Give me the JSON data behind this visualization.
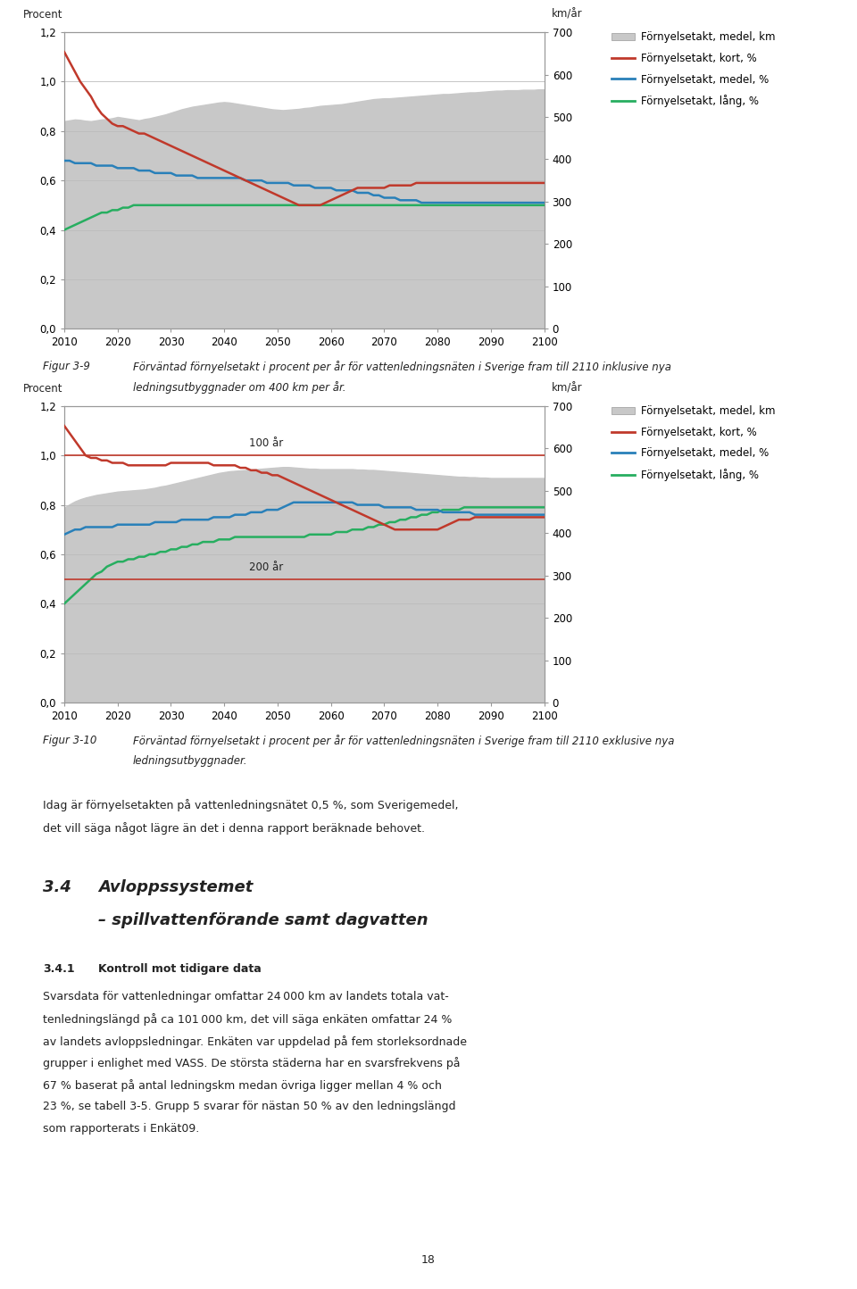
{
  "years": [
    2010,
    2011,
    2012,
    2013,
    2014,
    2015,
    2016,
    2017,
    2018,
    2019,
    2020,
    2021,
    2022,
    2023,
    2024,
    2025,
    2026,
    2027,
    2028,
    2029,
    2030,
    2031,
    2032,
    2033,
    2034,
    2035,
    2036,
    2037,
    2038,
    2039,
    2040,
    2041,
    2042,
    2043,
    2044,
    2045,
    2046,
    2047,
    2048,
    2049,
    2050,
    2051,
    2052,
    2053,
    2054,
    2055,
    2056,
    2057,
    2058,
    2059,
    2060,
    2061,
    2062,
    2063,
    2064,
    2065,
    2066,
    2067,
    2068,
    2069,
    2070,
    2071,
    2072,
    2073,
    2074,
    2075,
    2076,
    2077,
    2078,
    2079,
    2080,
    2081,
    2082,
    2083,
    2084,
    2085,
    2086,
    2087,
    2088,
    2089,
    2090,
    2091,
    2092,
    2093,
    2094,
    2095,
    2096,
    2097,
    2098,
    2099,
    2100
  ],
  "chart1": {
    "gray_fill": [
      490,
      492,
      494,
      493,
      491,
      490,
      492,
      494,
      495,
      497,
      500,
      498,
      496,
      494,
      492,
      495,
      497,
      500,
      503,
      506,
      510,
      514,
      518,
      521,
      524,
      526,
      528,
      530,
      532,
      534,
      535,
      534,
      532,
      530,
      528,
      526,
      524,
      522,
      520,
      518,
      517,
      516,
      517,
      518,
      519,
      521,
      522,
      524,
      526,
      527,
      528,
      529,
      530,
      532,
      534,
      536,
      538,
      540,
      542,
      543,
      544,
      544,
      545,
      546,
      547,
      548,
      549,
      550,
      551,
      552,
      553,
      554,
      554,
      555,
      556,
      557,
      558,
      558,
      559,
      560,
      561,
      562,
      562,
      563,
      563,
      563,
      564,
      564,
      564,
      565,
      565
    ],
    "red_short": [
      1.12,
      1.08,
      1.04,
      1.0,
      0.97,
      0.94,
      0.9,
      0.87,
      0.85,
      0.83,
      0.82,
      0.82,
      0.81,
      0.8,
      0.79,
      0.79,
      0.78,
      0.77,
      0.76,
      0.75,
      0.74,
      0.73,
      0.72,
      0.71,
      0.7,
      0.69,
      0.68,
      0.67,
      0.66,
      0.65,
      0.64,
      0.63,
      0.62,
      0.61,
      0.6,
      0.59,
      0.58,
      0.57,
      0.56,
      0.55,
      0.54,
      0.53,
      0.52,
      0.51,
      0.5,
      0.5,
      0.5,
      0.5,
      0.5,
      0.51,
      0.52,
      0.53,
      0.54,
      0.55,
      0.56,
      0.57,
      0.57,
      0.57,
      0.57,
      0.57,
      0.57,
      0.58,
      0.58,
      0.58,
      0.58,
      0.58,
      0.59,
      0.59,
      0.59,
      0.59,
      0.59,
      0.59,
      0.59,
      0.59,
      0.59,
      0.59,
      0.59,
      0.59,
      0.59,
      0.59,
      0.59,
      0.59,
      0.59,
      0.59,
      0.59,
      0.59,
      0.59,
      0.59,
      0.59,
      0.59,
      0.59
    ],
    "blue_med": [
      0.68,
      0.68,
      0.67,
      0.67,
      0.67,
      0.67,
      0.66,
      0.66,
      0.66,
      0.66,
      0.65,
      0.65,
      0.65,
      0.65,
      0.64,
      0.64,
      0.64,
      0.63,
      0.63,
      0.63,
      0.63,
      0.62,
      0.62,
      0.62,
      0.62,
      0.61,
      0.61,
      0.61,
      0.61,
      0.61,
      0.61,
      0.61,
      0.61,
      0.61,
      0.6,
      0.6,
      0.6,
      0.6,
      0.59,
      0.59,
      0.59,
      0.59,
      0.59,
      0.58,
      0.58,
      0.58,
      0.58,
      0.57,
      0.57,
      0.57,
      0.57,
      0.56,
      0.56,
      0.56,
      0.56,
      0.55,
      0.55,
      0.55,
      0.54,
      0.54,
      0.53,
      0.53,
      0.53,
      0.52,
      0.52,
      0.52,
      0.52,
      0.51,
      0.51,
      0.51,
      0.51,
      0.51,
      0.51,
      0.51,
      0.51,
      0.51,
      0.51,
      0.51,
      0.51,
      0.51,
      0.51,
      0.51,
      0.51,
      0.51,
      0.51,
      0.51,
      0.51,
      0.51,
      0.51,
      0.51,
      0.51
    ],
    "green_long": [
      0.4,
      0.41,
      0.42,
      0.43,
      0.44,
      0.45,
      0.46,
      0.47,
      0.47,
      0.48,
      0.48,
      0.49,
      0.49,
      0.5,
      0.5,
      0.5,
      0.5,
      0.5,
      0.5,
      0.5,
      0.5,
      0.5,
      0.5,
      0.5,
      0.5,
      0.5,
      0.5,
      0.5,
      0.5,
      0.5,
      0.5,
      0.5,
      0.5,
      0.5,
      0.5,
      0.5,
      0.5,
      0.5,
      0.5,
      0.5,
      0.5,
      0.5,
      0.5,
      0.5,
      0.5,
      0.5,
      0.5,
      0.5,
      0.5,
      0.5,
      0.5,
      0.5,
      0.5,
      0.5,
      0.5,
      0.5,
      0.5,
      0.5,
      0.5,
      0.5,
      0.5,
      0.5,
      0.5,
      0.5,
      0.5,
      0.5,
      0.5,
      0.5,
      0.5,
      0.5,
      0.5,
      0.5,
      0.5,
      0.5,
      0.5,
      0.5,
      0.5,
      0.5,
      0.5,
      0.5,
      0.5,
      0.5,
      0.5,
      0.5,
      0.5,
      0.5,
      0.5,
      0.5,
      0.5,
      0.5,
      0.5
    ]
  },
  "chart2": {
    "gray_fill": [
      460,
      468,
      475,
      480,
      484,
      487,
      490,
      492,
      494,
      496,
      498,
      499,
      500,
      501,
      502,
      503,
      505,
      507,
      510,
      512,
      515,
      518,
      521,
      524,
      527,
      530,
      533,
      536,
      539,
      542,
      544,
      546,
      547,
      548,
      549,
      550,
      551,
      552,
      553,
      554,
      555,
      556,
      556,
      555,
      554,
      553,
      552,
      552,
      551,
      551,
      551,
      551,
      551,
      551,
      551,
      550,
      550,
      549,
      549,
      548,
      547,
      546,
      545,
      544,
      543,
      542,
      541,
      540,
      539,
      538,
      537,
      536,
      535,
      534,
      533,
      533,
      532,
      532,
      531,
      531,
      530,
      530,
      530,
      530,
      530,
      530,
      530,
      530,
      530,
      530,
      530
    ],
    "red_short": [
      1.12,
      1.09,
      1.06,
      1.03,
      1.0,
      0.99,
      0.99,
      0.98,
      0.98,
      0.97,
      0.97,
      0.97,
      0.96,
      0.96,
      0.96,
      0.96,
      0.96,
      0.96,
      0.96,
      0.96,
      0.97,
      0.97,
      0.97,
      0.97,
      0.97,
      0.97,
      0.97,
      0.97,
      0.96,
      0.96,
      0.96,
      0.96,
      0.96,
      0.95,
      0.95,
      0.94,
      0.94,
      0.93,
      0.93,
      0.92,
      0.92,
      0.91,
      0.9,
      0.89,
      0.88,
      0.87,
      0.86,
      0.85,
      0.84,
      0.83,
      0.82,
      0.81,
      0.8,
      0.79,
      0.78,
      0.77,
      0.76,
      0.75,
      0.74,
      0.73,
      0.72,
      0.71,
      0.7,
      0.7,
      0.7,
      0.7,
      0.7,
      0.7,
      0.7,
      0.7,
      0.7,
      0.71,
      0.72,
      0.73,
      0.74,
      0.74,
      0.74,
      0.75,
      0.75,
      0.75,
      0.75,
      0.75,
      0.75,
      0.75,
      0.75,
      0.75,
      0.75,
      0.75,
      0.75,
      0.75,
      0.75
    ],
    "blue_med": [
      0.68,
      0.69,
      0.7,
      0.7,
      0.71,
      0.71,
      0.71,
      0.71,
      0.71,
      0.71,
      0.72,
      0.72,
      0.72,
      0.72,
      0.72,
      0.72,
      0.72,
      0.73,
      0.73,
      0.73,
      0.73,
      0.73,
      0.74,
      0.74,
      0.74,
      0.74,
      0.74,
      0.74,
      0.75,
      0.75,
      0.75,
      0.75,
      0.76,
      0.76,
      0.76,
      0.77,
      0.77,
      0.77,
      0.78,
      0.78,
      0.78,
      0.79,
      0.8,
      0.81,
      0.81,
      0.81,
      0.81,
      0.81,
      0.81,
      0.81,
      0.81,
      0.81,
      0.81,
      0.81,
      0.81,
      0.8,
      0.8,
      0.8,
      0.8,
      0.8,
      0.79,
      0.79,
      0.79,
      0.79,
      0.79,
      0.79,
      0.78,
      0.78,
      0.78,
      0.78,
      0.78,
      0.77,
      0.77,
      0.77,
      0.77,
      0.77,
      0.77,
      0.76,
      0.76,
      0.76,
      0.76,
      0.76,
      0.76,
      0.76,
      0.76,
      0.76,
      0.76,
      0.76,
      0.76,
      0.76,
      0.76
    ],
    "green_long": [
      0.4,
      0.42,
      0.44,
      0.46,
      0.48,
      0.5,
      0.52,
      0.53,
      0.55,
      0.56,
      0.57,
      0.57,
      0.58,
      0.58,
      0.59,
      0.59,
      0.6,
      0.6,
      0.61,
      0.61,
      0.62,
      0.62,
      0.63,
      0.63,
      0.64,
      0.64,
      0.65,
      0.65,
      0.65,
      0.66,
      0.66,
      0.66,
      0.67,
      0.67,
      0.67,
      0.67,
      0.67,
      0.67,
      0.67,
      0.67,
      0.67,
      0.67,
      0.67,
      0.67,
      0.67,
      0.67,
      0.68,
      0.68,
      0.68,
      0.68,
      0.68,
      0.69,
      0.69,
      0.69,
      0.7,
      0.7,
      0.7,
      0.71,
      0.71,
      0.72,
      0.72,
      0.73,
      0.73,
      0.74,
      0.74,
      0.75,
      0.75,
      0.76,
      0.76,
      0.77,
      0.77,
      0.78,
      0.78,
      0.78,
      0.78,
      0.79,
      0.79,
      0.79,
      0.79,
      0.79,
      0.79,
      0.79,
      0.79,
      0.79,
      0.79,
      0.79,
      0.79,
      0.79,
      0.79,
      0.79,
      0.79
    ],
    "line_100yr": 1.0,
    "line_200yr": 0.5,
    "label_100yr": "100 år",
    "label_200yr": "200 år"
  },
  "ylim_left": [
    0.0,
    1.2
  ],
  "ylim_right": [
    0,
    700
  ],
  "yticks_left": [
    0.0,
    0.2,
    0.4,
    0.6,
    0.8,
    1.0,
    1.2
  ],
  "ytick_labels_left": [
    "0,0",
    "0,2",
    "0,4",
    "0,6",
    "0,8",
    "1,0",
    "1,2"
  ],
  "yticks_right": [
    0,
    100,
    200,
    300,
    400,
    500,
    600,
    700
  ],
  "xtick_vals": [
    2010,
    2020,
    2030,
    2040,
    2050,
    2060,
    2070,
    2080,
    2090,
    2100
  ],
  "xlabel_left": "Procent",
  "xlabel_right": "km/år",
  "legend_gray": "Förnyelsetakt, medel, km",
  "legend_red": "Förnyelsetakt, kort, %",
  "legend_blue": "Förnyelsetakt, medel, %",
  "legend_green": "Förnyelsetakt, lång, %",
  "color_red": "#c0392b",
  "color_blue": "#2980b9",
  "color_green": "#27ae60",
  "color_gray_fill": "#c8c8c8",
  "page_number": "18",
  "fig39_label": "Figur 3-9",
  "fig39_text1": "Förväntad förnyelsetakt i procent per år för vattenledningsnäten i Sverige fram till 2110 inklusive nya",
  "fig39_text2": "ledningsutbyggnader om 400 km per år.",
  "fig310_label": "Figur 3-10",
  "fig310_text1": "Förväntad förnyelsetakt i procent per år för vattenledningsnäten i Sverige fram till 2110 exklusive nya",
  "fig310_text2": "ledningsutbyggnader.",
  "body1_line1": "Idag är förnyelsetakten på vattenledningsnätet 0,5 %, som Sverigemedel,",
  "body1_line2": "det vill säga något lägre än det i denna rapport beräknade behovet.",
  "h34_num": "3.4",
  "h34_title1": "Avloppssystemet",
  "h34_title2": "– spillvattenförande samt dagvatten",
  "h341_num": "3.4.1",
  "h341_title": "Kontroll mot tidigare data",
  "body2_lines": [
    "Svarsdata för vattenledningar omfattar 24 000 km av landets totala vat-",
    "tenledningslängd på ca 101 000 km, det vill säga enkäten omfattar 24 %",
    "av landets avloppsledningar. Enkäten var uppdelad på fem storleksordnade",
    "grupper i enlighet med VASS. De största städerna har en svarsfrekvens på",
    "67 % baserat på antal ledningskm medan övriga ligger mellan 4 % och",
    "23 %, se tabell 3-5. Grupp 5 svarar för nästan 50 % av den ledningslängd",
    "som rapporterats i Enkät09."
  ]
}
